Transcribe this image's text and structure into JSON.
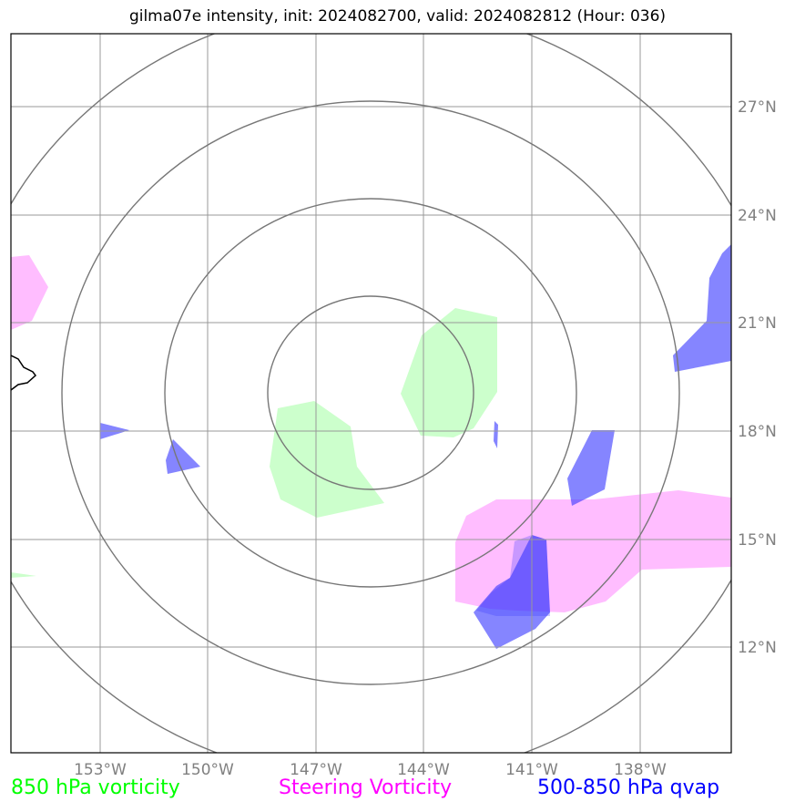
{
  "title": "gilma07e intensity, init: 2024082700, valid: 2024082812 (Hour: 036)",
  "map": {
    "lon_labels": [
      "153°W",
      "150°W",
      "147°W",
      "144°W",
      "141°W",
      "138°W"
    ],
    "lat_labels": [
      "27°N",
      "24°N",
      "21°N",
      "18°N",
      "15°N",
      "12°N"
    ],
    "colors": {
      "frame": "#000000",
      "grid": "#999999",
      "range_rings": "#777777",
      "coastline": "#000000",
      "vorticity_850": "#ccffcc",
      "steering_vorticity": "#ff99ff",
      "qvap": "#3333ff"
    }
  },
  "legend": {
    "vorticity_850": {
      "label": "850 hPa vorticity",
      "color": "#00ff00"
    },
    "steering_vorticity": {
      "label": "Steering Vorticity",
      "color": "#ff00ff"
    },
    "qvap": {
      "label": "500-850 hPa qvap",
      "color": "#0000ff"
    }
  }
}
